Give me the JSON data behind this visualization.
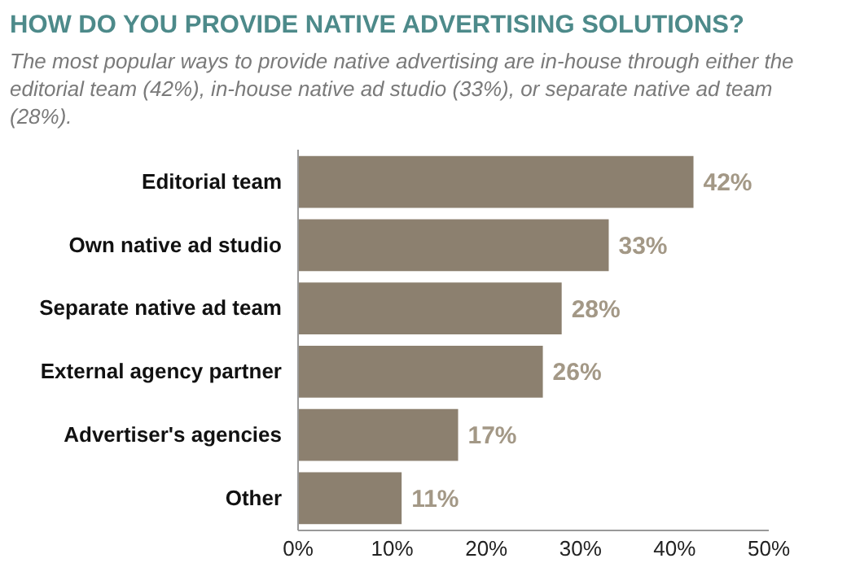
{
  "chart_data": {
    "type": "bar",
    "orientation": "horizontal",
    "title": "HOW DO YOU PROVIDE NATIVE ADVERTISING SOLUTIONS?",
    "subtitle": "The most popular ways to provide native advertising are in-house through either the editorial team (42%), in-house native ad studio (33%), or separate native ad team (28%).",
    "categories": [
      "Editorial team",
      "Own native ad studio",
      "Separate native ad team",
      "External agency partner",
      "Advertiser's agencies",
      "Other"
    ],
    "values": [
      42,
      33,
      28,
      26,
      17,
      11
    ],
    "color": "#8c806f",
    "value_labels": [
      "42%",
      "33%",
      "28%",
      "26%",
      "17%",
      "11%"
    ],
    "xlim": [
      0,
      50
    ],
    "xticks": [
      {
        "value": 0,
        "label": "0%"
      },
      {
        "value": 10,
        "label": "10%"
      },
      {
        "value": 20,
        "label": "20%"
      },
      {
        "value": 30,
        "label": "30%"
      },
      {
        "value": 40,
        "label": "40%"
      },
      {
        "value": 50,
        "label": "50%"
      }
    ],
    "grid": false
  }
}
